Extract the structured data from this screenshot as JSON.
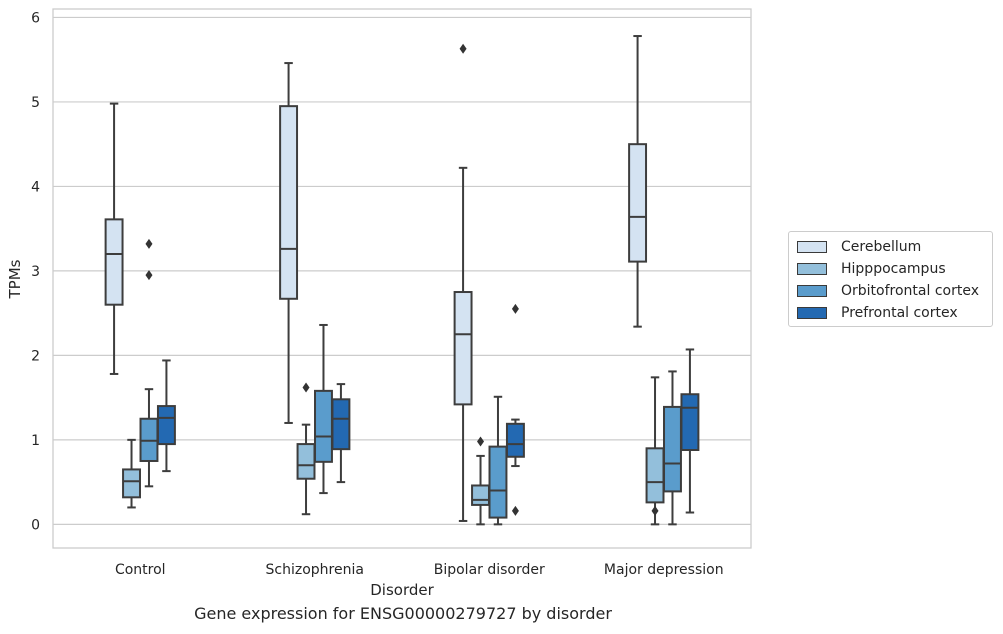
{
  "chart_data": {
    "type": "box",
    "xlabel": "Disorder",
    "ylabel": "TPMs",
    "caption": "Gene expression for ENSG00000279727 by disorder",
    "ylim": [
      -0.28,
      6.1
    ],
    "yticks": [
      "0",
      "1",
      "2",
      "3",
      "4",
      "5",
      "6"
    ],
    "grid": true,
    "legend_position": "right",
    "categories": [
      "Control",
      "Schizophrenia",
      "Bipolar disorder",
      "Major depression"
    ],
    "series": [
      {
        "name": "Cerebellum",
        "color": "#d4e3f2",
        "boxes": [
          {
            "whisker_low": 1.78,
            "q1": 2.6,
            "median": 3.2,
            "q3": 3.61,
            "whisker_high": 4.98,
            "outliers": []
          },
          {
            "whisker_low": 1.2,
            "q1": 2.67,
            "median": 3.26,
            "q3": 4.95,
            "whisker_high": 5.46,
            "outliers": []
          },
          {
            "whisker_low": 0.04,
            "q1": 1.42,
            "median": 2.25,
            "q3": 2.75,
            "whisker_high": 4.22,
            "outliers": [
              5.63
            ]
          },
          {
            "whisker_low": 2.34,
            "q1": 3.11,
            "median": 3.64,
            "q3": 4.5,
            "whisker_high": 5.78,
            "outliers": []
          }
        ]
      },
      {
        "name": "Hipppocampus",
        "color": "#93bfdb",
        "boxes": [
          {
            "whisker_low": 0.2,
            "q1": 0.32,
            "median": 0.51,
            "q3": 0.65,
            "whisker_high": 1.0,
            "outliers": []
          },
          {
            "whisker_low": 0.12,
            "q1": 0.54,
            "median": 0.7,
            "q3": 0.95,
            "whisker_high": 1.18,
            "outliers": [
              1.62
            ]
          },
          {
            "whisker_low": 0.0,
            "q1": 0.23,
            "median": 0.29,
            "q3": 0.46,
            "whisker_high": 0.81,
            "outliers": [
              0.98
            ]
          },
          {
            "whisker_low": 0.0,
            "q1": 0.26,
            "median": 0.5,
            "q3": 0.9,
            "whisker_high": 1.74,
            "outliers": [
              0.16
            ]
          }
        ]
      },
      {
        "name": "Orbitofrontal cortex",
        "color": "#5a9ccc",
        "boxes": [
          {
            "whisker_low": 0.45,
            "q1": 0.75,
            "median": 0.99,
            "q3": 1.25,
            "whisker_high": 1.6,
            "outliers": [
              2.95,
              3.32
            ]
          },
          {
            "whisker_low": 0.37,
            "q1": 0.74,
            "median": 1.04,
            "q3": 1.58,
            "whisker_high": 2.36,
            "outliers": []
          },
          {
            "whisker_low": 0.0,
            "q1": 0.08,
            "median": 0.4,
            "q3": 0.92,
            "whisker_high": 1.51,
            "outliers": []
          },
          {
            "whisker_low": 0.0,
            "q1": 0.39,
            "median": 0.72,
            "q3": 1.39,
            "whisker_high": 1.81,
            "outliers": []
          }
        ]
      },
      {
        "name": "Prefrontal cortex",
        "color": "#2369b2",
        "boxes": [
          {
            "whisker_low": 0.63,
            "q1": 0.95,
            "median": 1.26,
            "q3": 1.4,
            "whisker_high": 1.94,
            "outliers": []
          },
          {
            "whisker_low": 0.5,
            "q1": 0.89,
            "median": 1.25,
            "q3": 1.48,
            "whisker_high": 1.66,
            "outliers": []
          },
          {
            "whisker_low": 0.69,
            "q1": 0.8,
            "median": 0.95,
            "q3": 1.19,
            "whisker_high": 1.24,
            "outliers": [
              0.16,
              2.55
            ]
          },
          {
            "whisker_low": 0.14,
            "q1": 0.88,
            "median": 1.38,
            "q3": 1.54,
            "whisker_high": 2.07,
            "outliers": []
          }
        ]
      }
    ]
  }
}
